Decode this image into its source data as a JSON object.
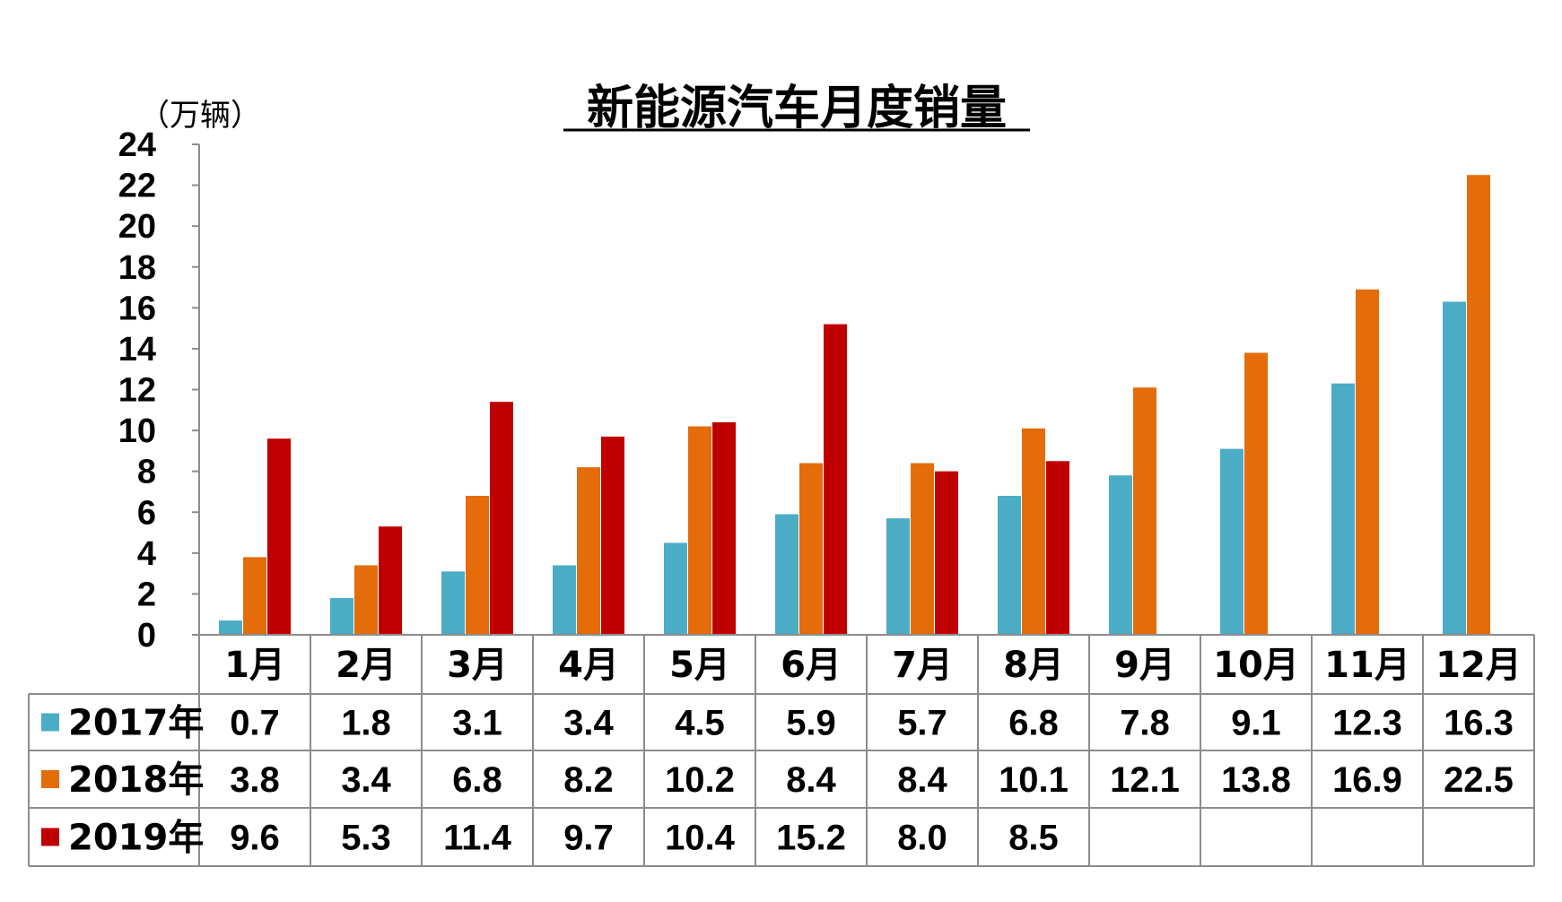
{
  "chart_data": {
    "type": "bar",
    "title": "新能源汽车月度销量",
    "unit_label": "（万辆）",
    "categories": [
      "1月",
      "2月",
      "3月",
      "4月",
      "5月",
      "6月",
      "7月",
      "8月",
      "9月",
      "10月",
      "11月",
      "12月"
    ],
    "series": [
      {
        "name": "2017年",
        "color": "#4bacc6",
        "values": [
          0.7,
          1.8,
          3.1,
          3.4,
          4.5,
          5.9,
          5.7,
          6.8,
          7.8,
          9.1,
          12.3,
          16.3
        ],
        "labels": [
          "0.7",
          "1.8",
          "3.1",
          "3.4",
          "4.5",
          "5.9",
          "5.7",
          "6.8",
          "7.8",
          "9.1",
          "12.3",
          "16.3"
        ]
      },
      {
        "name": "2018年",
        "color": "#e46c0a",
        "values": [
          3.8,
          3.4,
          6.8,
          8.2,
          10.2,
          8.4,
          8.4,
          10.1,
          12.1,
          13.8,
          16.9,
          22.5
        ],
        "labels": [
          "3.8",
          "3.4",
          "6.8",
          "8.2",
          "10.2",
          "8.4",
          "8.4",
          "10.1",
          "12.1",
          "13.8",
          "16.9",
          "22.5"
        ]
      },
      {
        "name": "2019年",
        "color": "#c00000",
        "values": [
          9.6,
          5.3,
          11.4,
          9.7,
          10.4,
          15.2,
          8.0,
          8.5,
          null,
          null,
          null,
          null
        ],
        "labels": [
          "9.6",
          "5.3",
          "11.4",
          "9.7",
          "10.4",
          "15.2",
          "8.0",
          "8.5",
          "",
          "",
          "",
          ""
        ]
      }
    ],
    "ylim": [
      0,
      24
    ],
    "yticks": [
      "0",
      "2",
      "4",
      "6",
      "8",
      "10",
      "12",
      "14",
      "16",
      "18",
      "20",
      "22",
      "24"
    ],
    "data_table": true,
    "grid": false
  }
}
